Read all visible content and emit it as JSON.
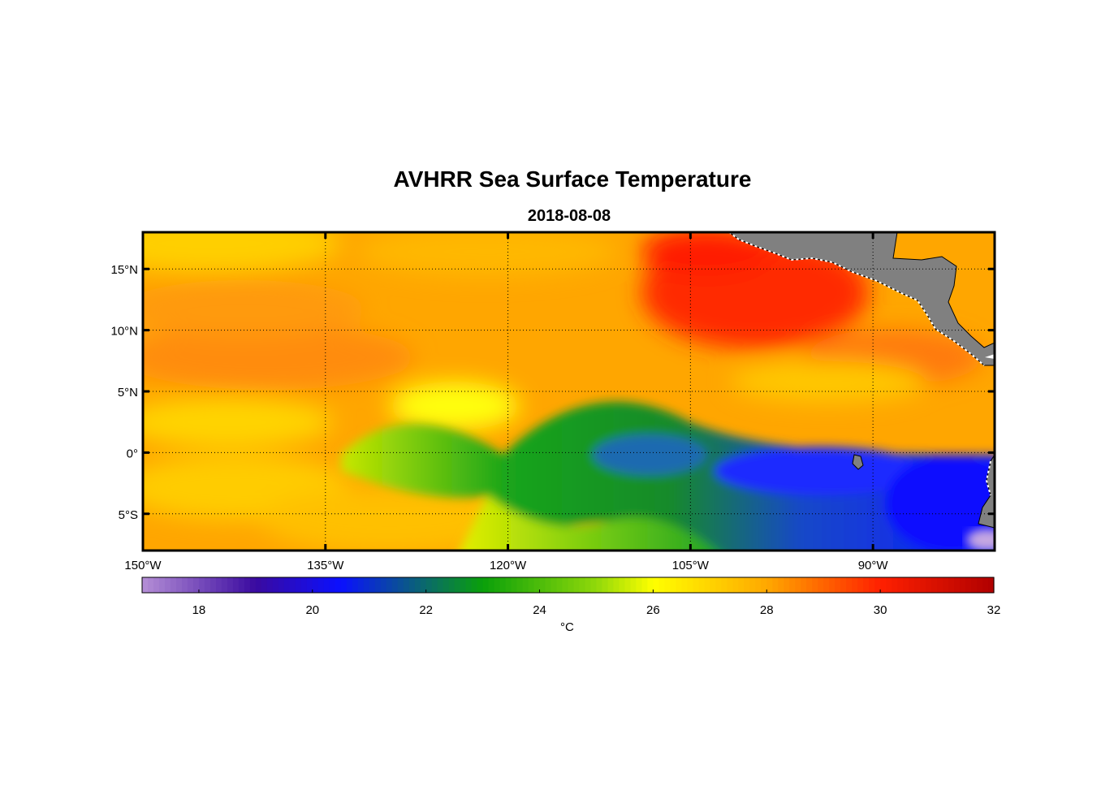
{
  "title": "AVHRR Sea Surface Temperature",
  "subtitle": "2018-08-08",
  "map": {
    "lon_range": [
      -150,
      -80
    ],
    "lat_range": [
      -8,
      18
    ],
    "lon_ticks": [
      {
        "value": -150,
        "label": "150°W"
      },
      {
        "value": -135,
        "label": "135°W"
      },
      {
        "value": -120,
        "label": "120°W"
      },
      {
        "value": -105,
        "label": "105°W"
      },
      {
        "value": -90,
        "label": "90°W"
      }
    ],
    "lat_ticks": [
      {
        "value": 15,
        "label": "15°N"
      },
      {
        "value": 10,
        "label": "10°N"
      },
      {
        "value": 5,
        "label": "5°N"
      },
      {
        "value": 0,
        "label": "0°"
      },
      {
        "value": -5,
        "label": "5°S"
      }
    ],
    "land_color": "#808080",
    "grid_style": "dotted"
  },
  "colorbar": {
    "min": 17,
    "max": 32,
    "ticks": [
      18,
      20,
      22,
      24,
      26,
      28,
      30,
      32
    ],
    "unit": "°C",
    "stops": [
      {
        "t": 17,
        "color": "#b58fd6"
      },
      {
        "t": 19,
        "color": "#3a0aa0"
      },
      {
        "t": 20.5,
        "color": "#0a10ff"
      },
      {
        "t": 22,
        "color": "#0a6a6a"
      },
      {
        "t": 23,
        "color": "#0aa00a"
      },
      {
        "t": 25,
        "color": "#90d80a"
      },
      {
        "t": 26,
        "color": "#ffff00"
      },
      {
        "t": 28,
        "color": "#ffa800"
      },
      {
        "t": 30,
        "color": "#ff2000"
      },
      {
        "t": 32,
        "color": "#b00000"
      }
    ]
  }
}
